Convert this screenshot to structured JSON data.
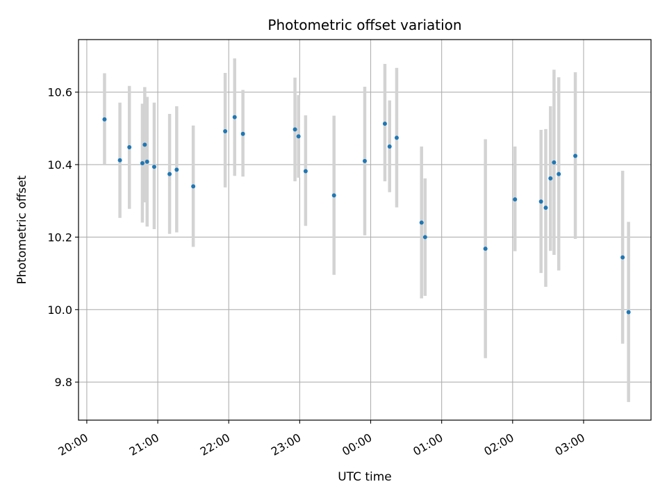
{
  "chart_data": {
    "type": "scatter",
    "title": "Photometric offset variation",
    "xlabel": "UTC time",
    "ylabel": "Photometric offset",
    "grid": true,
    "x_axis_type": "time",
    "x_tick_labels": [
      "20:00",
      "21:00",
      "22:00",
      "23:00",
      "00:00",
      "01:00",
      "02:00",
      "03:00"
    ],
    "x_ticks": [
      "20:00",
      "21:00",
      "22:00",
      "23:00",
      "24:00",
      "25:00",
      "26:00",
      "27:00"
    ],
    "xlim": [
      "19:53",
      "27:57"
    ],
    "ylim": [
      9.695,
      10.745
    ],
    "y_ticks": [
      9.8,
      10.0,
      10.2,
      10.4,
      10.6
    ],
    "y_tick_labels": [
      "9.8",
      "10.0",
      "10.2",
      "10.4",
      "10.6"
    ],
    "colors": {
      "point": "#1f77b4",
      "errorbar": "#d3d3d3",
      "grid": "#b0b0b0"
    },
    "series": [
      {
        "marker": "point",
        "errorbar": "vertical",
        "points": [
          {
            "x": "20:15",
            "y": 10.525,
            "lo": 10.4,
            "hi": 10.652
          },
          {
            "x": "20:28",
            "y": 10.412,
            "lo": 10.253,
            "hi": 10.571
          },
          {
            "x": "20:36",
            "y": 10.448,
            "lo": 10.278,
            "hi": 10.617
          },
          {
            "x": "20:47",
            "y": 10.404,
            "lo": 10.24,
            "hi": 10.568
          },
          {
            "x": "20:49",
            "y": 10.455,
            "lo": 10.296,
            "hi": 10.614
          },
          {
            "x": "20:51",
            "y": 10.408,
            "lo": 10.229,
            "hi": 10.587
          },
          {
            "x": "20:57",
            "y": 10.394,
            "lo": 10.222,
            "hi": 10.571
          },
          {
            "x": "21:10",
            "y": 10.374,
            "lo": 10.209,
            "hi": 10.54
          },
          {
            "x": "21:16",
            "y": 10.386,
            "lo": 10.213,
            "hi": 10.561
          },
          {
            "x": "21:30",
            "y": 10.34,
            "lo": 10.173,
            "hi": 10.508
          },
          {
            "x": "21:57",
            "y": 10.492,
            "lo": 10.337,
            "hi": 10.653
          },
          {
            "x": "22:05",
            "y": 10.531,
            "lo": 10.369,
            "hi": 10.693
          },
          {
            "x": "22:12",
            "y": 10.485,
            "lo": 10.367,
            "hi": 10.606
          },
          {
            "x": "22:56",
            "y": 10.497,
            "lo": 10.354,
            "hi": 10.64
          },
          {
            "x": "22:59",
            "y": 10.478,
            "lo": 10.364,
            "hi": 10.592
          },
          {
            "x": "23:05",
            "y": 10.382,
            "lo": 10.231,
            "hi": 10.536
          },
          {
            "x": "23:29",
            "y": 10.315,
            "lo": 10.096,
            "hi": 10.535
          },
          {
            "x": "23:55",
            "y": 10.41,
            "lo": 10.205,
            "hi": 10.615
          },
          {
            "x": "24:12",
            "y": 10.513,
            "lo": 10.354,
            "hi": 10.678
          },
          {
            "x": "24:16",
            "y": 10.45,
            "lo": 10.324,
            "hi": 10.577
          },
          {
            "x": "24:22",
            "y": 10.474,
            "lo": 10.282,
            "hi": 10.667
          },
          {
            "x": "24:43",
            "y": 10.24,
            "lo": 10.031,
            "hi": 10.45
          },
          {
            "x": "24:46",
            "y": 10.2,
            "lo": 10.038,
            "hi": 10.362
          },
          {
            "x": "25:37",
            "y": 10.168,
            "lo": 9.866,
            "hi": 10.47
          },
          {
            "x": "26:02",
            "y": 10.304,
            "lo": 10.161,
            "hi": 10.45
          },
          {
            "x": "26:24",
            "y": 10.298,
            "lo": 10.101,
            "hi": 10.496
          },
          {
            "x": "26:28",
            "y": 10.281,
            "lo": 10.063,
            "hi": 10.498
          },
          {
            "x": "26:32",
            "y": 10.362,
            "lo": 10.162,
            "hi": 10.561
          },
          {
            "x": "26:35",
            "y": 10.406,
            "lo": 10.151,
            "hi": 10.662
          },
          {
            "x": "26:39",
            "y": 10.374,
            "lo": 10.108,
            "hi": 10.641
          },
          {
            "x": "26:53",
            "y": 10.424,
            "lo": 10.195,
            "hi": 10.655
          },
          {
            "x": "27:33",
            "y": 10.144,
            "lo": 9.906,
            "hi": 10.383
          },
          {
            "x": "27:38",
            "y": 9.993,
            "lo": 9.745,
            "hi": 10.242
          }
        ]
      }
    ]
  }
}
